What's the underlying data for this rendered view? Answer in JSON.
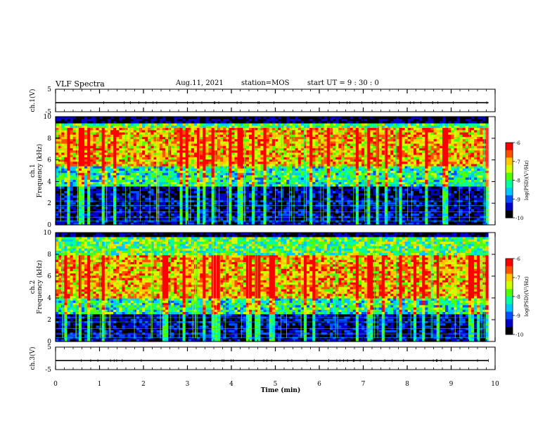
{
  "header": {
    "title": "VLF Spectra",
    "date": "Aug.11, 2021",
    "station": "station=MOS",
    "start": "start UT =  9 : 30 : 0"
  },
  "chart_data": [
    {
      "type": "line",
      "panel": "ch.1 waveform",
      "ylabel": "ch.1(V)",
      "ylim": [
        -5,
        5
      ],
      "yticks": [
        "5",
        "-5"
      ],
      "series": [
        {
          "values": [
            -1,
            -1
          ]
        }
      ],
      "x": [
        0,
        9.85
      ]
    },
    {
      "type": "heatmap",
      "panel": "ch.1 spectrogram",
      "ylabel": "ch.1 Frequency (kHz)",
      "ylim": [
        0,
        10
      ],
      "yticks": [
        "0",
        "2",
        "4",
        "6",
        "8",
        "10"
      ],
      "xlim": [
        0,
        9.85
      ],
      "colorbar": {
        "label": "log(PSD)(V²/Hz)",
        "range": [
          -10,
          -6
        ],
        "ticks": [
          "-6",
          "-7",
          "-8",
          "-9",
          "-10"
        ]
      },
      "bands_kHz": {
        "background_low": [
          0,
          3.5
        ],
        "strong": [
          5.5,
          9
        ],
        "saturated_top": [
          9.3,
          10
        ]
      }
    },
    {
      "type": "heatmap",
      "panel": "ch.2 spectrogram",
      "ylabel": "ch.2 Frequency (kHz)",
      "ylim": [
        0,
        10
      ],
      "yticks": [
        "0",
        "2",
        "4",
        "6",
        "8",
        "10"
      ],
      "xlim": [
        0,
        9.85
      ],
      "colorbar": {
        "label": "log(PSD)(V²/Hz)",
        "range": [
          -10,
          -6
        ],
        "ticks": [
          "-6",
          "-7",
          "-8",
          "-9",
          "-10"
        ]
      },
      "bands_kHz": {
        "background_low": [
          0,
          2.5
        ],
        "strong": [
          4,
          8
        ],
        "saturated_top": [
          9.5,
          10
        ]
      }
    },
    {
      "type": "line",
      "panel": "ch.3 waveform",
      "ylabel": "ch.3(V)",
      "ylim": [
        -5,
        5
      ],
      "yticks": [
        "5",
        "-5"
      ],
      "series": [
        {
          "values": [
            -1,
            -1
          ]
        }
      ],
      "x": [
        0,
        9.85
      ],
      "xlabel": "Time (min)",
      "xlim": [
        0,
        10
      ],
      "xticks": [
        "0",
        "1",
        "2",
        "3",
        "4",
        "5",
        "6",
        "7",
        "8",
        "9",
        "10"
      ]
    }
  ],
  "colors": {
    "frame": "#000000",
    "colormap": [
      "#000000",
      "#0000c8",
      "#0050ff",
      "#00c8ff",
      "#00ffa0",
      "#50ff00",
      "#d2ff00",
      "#ffc800",
      "#ff5000",
      "#ff0000",
      "#ffffff"
    ]
  }
}
